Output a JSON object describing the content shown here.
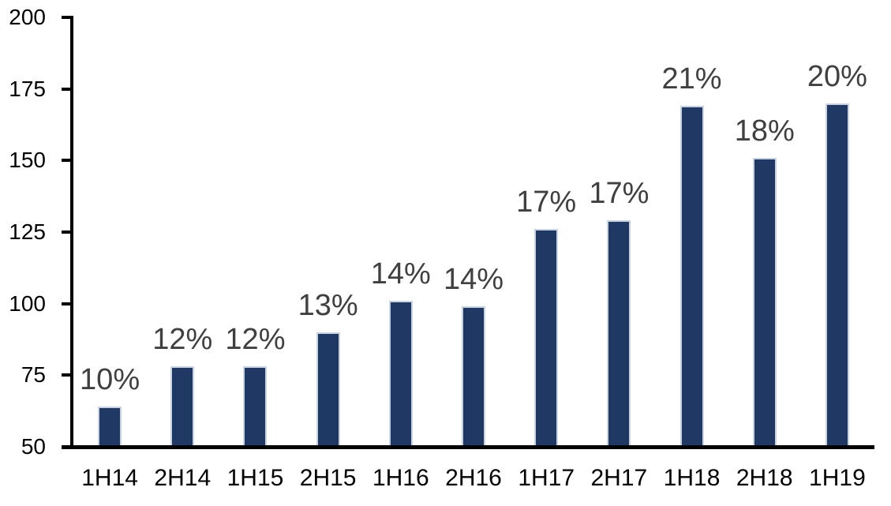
{
  "chart_data": {
    "type": "bar",
    "title": "",
    "xlabel": "",
    "ylabel": "",
    "categories": [
      "1H14",
      "2H14",
      "1H15",
      "2H15",
      "1H16",
      "2H16",
      "1H17",
      "2H17",
      "1H18",
      "2H18",
      "1H19"
    ],
    "values": [
      64,
      78,
      78,
      90,
      101,
      99,
      126,
      129,
      169,
      151,
      170
    ],
    "data_labels": [
      "10%",
      "12%",
      "12%",
      "13%",
      "14%",
      "14%",
      "17%",
      "17%",
      "21%",
      "18%",
      "20%"
    ],
    "ylim": [
      50,
      200
    ],
    "y_ticks": [
      50,
      75,
      100,
      125,
      150,
      175,
      200
    ],
    "grid": false,
    "legend": false,
    "colors": {
      "bar_fill": "#1F3864",
      "bar_border": "#C9D2DF",
      "axis": "#000000",
      "data_label": "#404040",
      "background": "#FFFFFF"
    }
  }
}
